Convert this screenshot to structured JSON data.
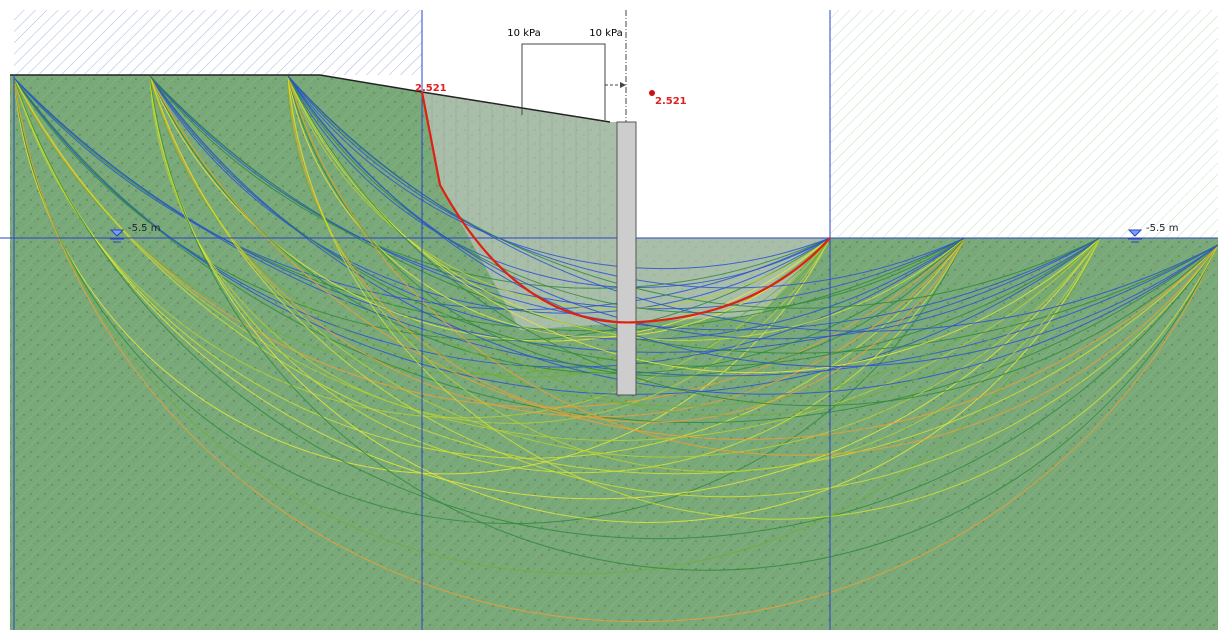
{
  "load_labels": [
    "10 kPa",
    "10 kPa"
  ],
  "factor_of_safety": {
    "at_circle": "2.521",
    "at_marker": "2.521"
  },
  "water_levels": [
    "-5.5 m",
    "-5.5 m"
  ]
}
